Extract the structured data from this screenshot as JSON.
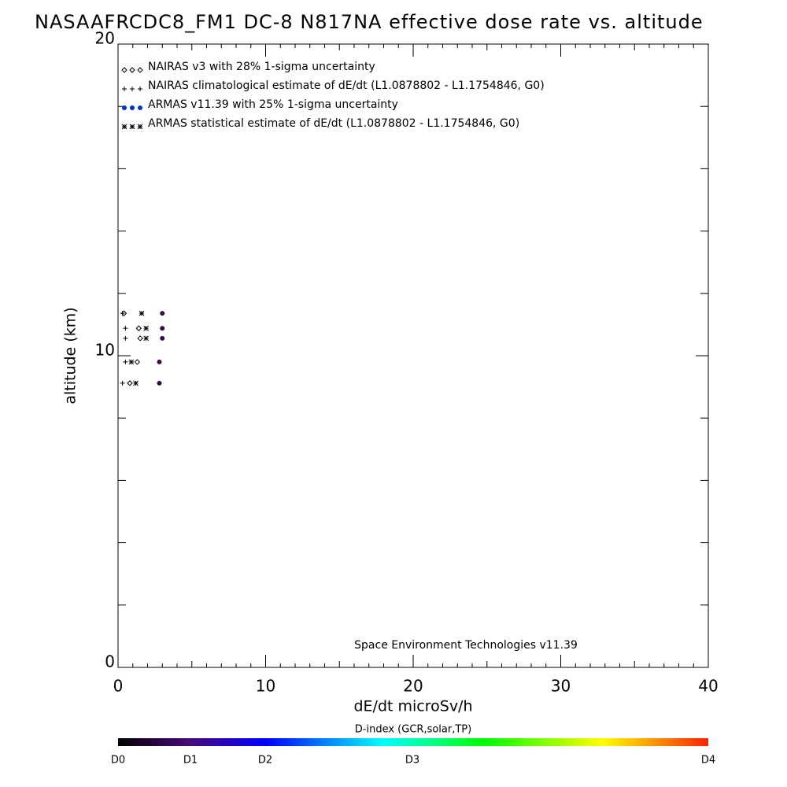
{
  "chart_data": {
    "type": "scatter",
    "title": "NASAAFRCDC8_FM1 DC-8   N817NA effective dose rate vs. altitude",
    "x_label": "dE/dt microSv/h",
    "y_label": "altitude (km)",
    "xlim": [
      0,
      40
    ],
    "ylim": [
      0,
      20
    ],
    "xticks": [
      0,
      10,
      20,
      30,
      40
    ],
    "yticks": [
      0,
      10,
      20
    ],
    "annotation": "Space Environment Technologies v11.39",
    "series": [
      {
        "name": "NAIRAS v3 with 28% 1-sigma uncertainty",
        "marker": "diamond",
        "color": "#000000",
        "x": [
          0.4,
          1.4,
          1.5,
          1.3,
          0.8
        ],
        "values": [
          11.36,
          10.88,
          10.56,
          9.8,
          9.12
        ]
      },
      {
        "name": "NAIRAS climatological estimate of dE/dt (L1.0878802 - L1.1754846, G0)",
        "marker": "plus",
        "color": "#000000",
        "x": [
          0.3,
          0.5,
          0.5,
          0.5,
          0.3
        ],
        "values": [
          11.36,
          10.88,
          10.56,
          9.8,
          9.12
        ]
      },
      {
        "name": "ARMAS v11.39 with 25% 1-sigma uncertainty",
        "marker": "circle",
        "color": "#0033cc",
        "point_color": "#3a0a48",
        "x": [
          3.0,
          3.0,
          3.0,
          2.8,
          2.8
        ],
        "values": [
          11.36,
          10.88,
          10.56,
          9.8,
          9.12
        ]
      },
      {
        "name": "ARMAS statistical estimate of dE/dt (L1.0878802 - L1.1754846, G0)",
        "marker": "asterisk",
        "color": "#000000",
        "x": [
          1.6,
          1.9,
          1.9,
          0.9,
          1.2
        ],
        "values": [
          11.36,
          10.88,
          10.56,
          9.8,
          9.12
        ]
      }
    ],
    "colorbar": {
      "title": "D-index (GCR,solar,TP)",
      "labels": [
        "D0",
        "D1",
        "D2",
        "D3",
        "D4"
      ]
    }
  }
}
